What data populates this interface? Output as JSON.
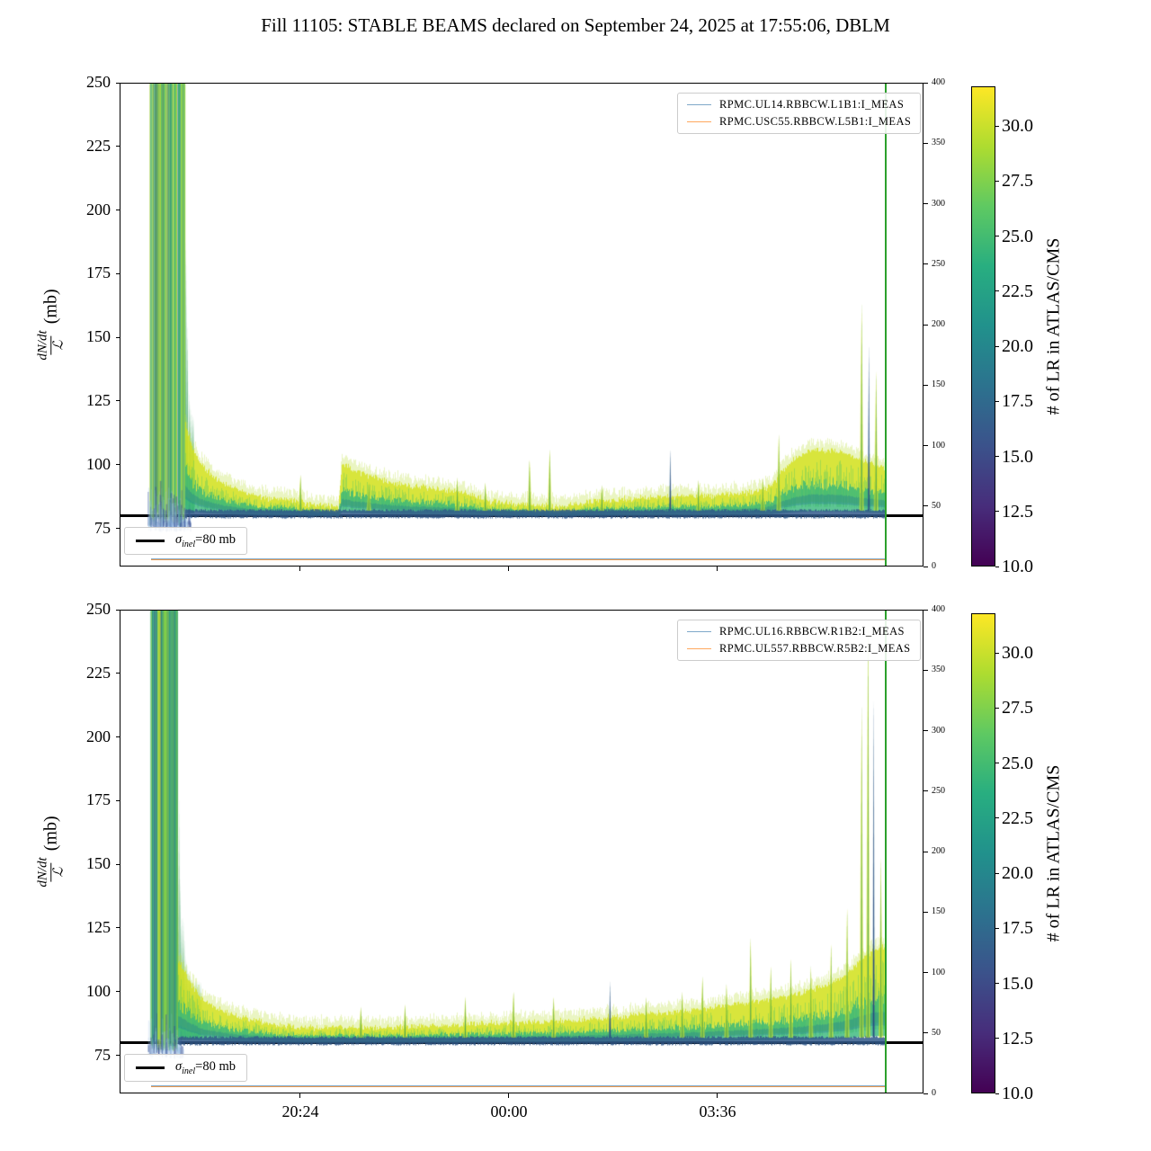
{
  "title": "Fill 11105: STABLE BEAMS declared on September 24, 2025 at 17:55:06, DBLM",
  "ylabel": {
    "numerator": "dN/dt",
    "denominator": "ℒ",
    "unit": "(mb)"
  },
  "xticks": [
    {
      "label": "20:24",
      "pos": 0.2248
    },
    {
      "label": "00:00",
      "pos": 0.4843
    },
    {
      "label": "03:36",
      "pos": 0.7438
    }
  ],
  "colormap": [
    "#440154",
    "#472d7b",
    "#3b528b",
    "#2c728e",
    "#21918c",
    "#28ae80",
    "#5ec962",
    "#addc30",
    "#fde725"
  ],
  "chart_data": [
    {
      "type": "area",
      "panel": "top",
      "series_legend": [
        "RPMC.UL14.RBBCW.L1B1:I_MEAS",
        "RPMC.USC55.RBBCW.L5B1:I_MEAS"
      ],
      "legend_colors": [
        "#7fa8c9",
        "#ffa85e"
      ],
      "ylim": [
        60,
        250
      ],
      "yticks": [
        250,
        225,
        200,
        175,
        150,
        125,
        100,
        75
      ],
      "right_ylim": [
        0,
        400
      ],
      "right_yticks": [
        0,
        50,
        100,
        150,
        200,
        250,
        300,
        350,
        400
      ],
      "hline": {
        "value": 80,
        "color": "#000000",
        "legend": {
          "sigma": "σ",
          "sub": "inel",
          "rest": "=80 mb"
        }
      },
      "end_marker": {
        "pos": 0.953,
        "color": "#2ca02c"
      },
      "bottom_traces": [
        {
          "color": "#7fa8c9",
          "right_value": 5.5
        },
        {
          "color": "#f09b4e",
          "right_value": 5.5
        }
      ],
      "colorbar": {
        "label": "# of LR in ATLAS/CMS",
        "vmin": 10,
        "vmax": 31.8,
        "ticks": [
          "10.0",
          "12.5",
          "15.0",
          "17.5",
          "20.0",
          "22.5",
          "25.0",
          "27.5",
          "30.0"
        ]
      },
      "band": {
        "style": "block",
        "x_start": 0.039,
        "burst_end": 0.081,
        "x_end": 0.953,
        "base": 79.5,
        "envelope": [
          [
            0.082,
            116
          ],
          [
            0.09,
            107
          ],
          [
            0.1,
            101
          ],
          [
            0.115,
            96
          ],
          [
            0.135,
            92
          ],
          [
            0.16,
            89
          ],
          [
            0.185,
            87
          ],
          [
            0.21,
            87
          ],
          [
            0.235,
            85
          ],
          [
            0.272,
            84
          ],
          [
            0.276,
            101
          ],
          [
            0.29,
            98
          ],
          [
            0.31,
            96
          ],
          [
            0.33,
            94
          ],
          [
            0.36,
            92
          ],
          [
            0.39,
            91
          ],
          [
            0.415,
            90
          ],
          [
            0.44,
            88
          ],
          [
            0.46,
            86
          ],
          [
            0.49,
            85
          ],
          [
            0.52,
            84.5
          ],
          [
            0.555,
            84
          ],
          [
            0.58,
            85.5
          ],
          [
            0.61,
            86.5
          ],
          [
            0.64,
            87
          ],
          [
            0.67,
            87.5
          ],
          [
            0.7,
            88
          ],
          [
            0.73,
            88
          ],
          [
            0.76,
            88.5
          ],
          [
            0.79,
            89.5
          ],
          [
            0.81,
            92
          ],
          [
            0.825,
            98
          ],
          [
            0.84,
            103
          ],
          [
            0.86,
            106
          ],
          [
            0.88,
            106
          ],
          [
            0.9,
            105
          ],
          [
            0.915,
            103
          ],
          [
            0.93,
            101
          ],
          [
            0.953,
            99
          ]
        ],
        "spikes": [
          [
            0.225,
            96
          ],
          [
            0.31,
            93
          ],
          [
            0.42,
            95
          ],
          [
            0.455,
            93
          ],
          [
            0.51,
            102
          ],
          [
            0.535,
            106
          ],
          [
            0.6,
            92
          ],
          [
            0.685,
            106,
            "dark"
          ],
          [
            0.72,
            94
          ],
          [
            0.8,
            95
          ],
          [
            0.82,
            112
          ],
          [
            0.923,
            163
          ],
          [
            0.932,
            147,
            "dark"
          ],
          [
            0.941,
            137
          ]
        ]
      }
    },
    {
      "type": "area",
      "panel": "bottom",
      "series_legend": [
        "RPMC.UL16.RBBCW.R1B2:I_MEAS",
        "RPMC.UL557.RBBCW.R5B2:I_MEAS"
      ],
      "legend_colors": [
        "#7fa8c9",
        "#ffa85e"
      ],
      "ylim": [
        60,
        250
      ],
      "yticks": [
        250,
        225,
        200,
        175,
        150,
        125,
        100,
        75
      ],
      "right_ylim": [
        0,
        400
      ],
      "right_yticks": [
        0,
        50,
        100,
        150,
        200,
        250,
        300,
        350,
        400
      ],
      "hline": {
        "value": 80,
        "color": "#000000",
        "legend": {
          "sigma": "σ",
          "sub": "inel",
          "rest": "=80 mb"
        }
      },
      "end_marker": {
        "pos": 0.953,
        "color": "#2ca02c"
      },
      "bottom_traces": [
        {
          "color": "#7fa8c9",
          "right_value": 5.5
        },
        {
          "color": "#f09b4e",
          "right_value": 5.5
        }
      ],
      "colorbar": {
        "label": "# of LR in ATLAS/CMS",
        "vmin": 10,
        "vmax": 31.8,
        "ticks": [
          "10.0",
          "12.5",
          "15.0",
          "17.5",
          "20.0",
          "22.5",
          "25.0",
          "27.5",
          "30.0"
        ]
      },
      "band": {
        "style": "spiky",
        "x_start": 0.039,
        "burst_end": 0.072,
        "x_end": 0.953,
        "base": 79.5,
        "envelope": [
          [
            0.075,
            112
          ],
          [
            0.085,
            105
          ],
          [
            0.1,
            98
          ],
          [
            0.12,
            94
          ],
          [
            0.14,
            91
          ],
          [
            0.17,
            89
          ],
          [
            0.2,
            87
          ],
          [
            0.24,
            86
          ],
          [
            0.28,
            86.5
          ],
          [
            0.32,
            86
          ],
          [
            0.36,
            86.5
          ],
          [
            0.4,
            87
          ],
          [
            0.44,
            87.5
          ],
          [
            0.48,
            88
          ],
          [
            0.52,
            88.5
          ],
          [
            0.56,
            89
          ],
          [
            0.6,
            90
          ],
          [
            0.64,
            91
          ],
          [
            0.68,
            92
          ],
          [
            0.72,
            93.5
          ],
          [
            0.76,
            95
          ],
          [
            0.8,
            97
          ],
          [
            0.84,
            99
          ],
          [
            0.87,
            102
          ],
          [
            0.9,
            106
          ],
          [
            0.92,
            112
          ],
          [
            0.935,
            116
          ],
          [
            0.953,
            118
          ]
        ],
        "spikes": [
          [
            0.3,
            94
          ],
          [
            0.355,
            95
          ],
          [
            0.43,
            98
          ],
          [
            0.49,
            100
          ],
          [
            0.54,
            98
          ],
          [
            0.61,
            104,
            "dark"
          ],
          [
            0.655,
            98
          ],
          [
            0.7,
            100
          ],
          [
            0.725,
            106
          ],
          [
            0.755,
            103
          ],
          [
            0.785,
            121
          ],
          [
            0.81,
            110
          ],
          [
            0.835,
            113
          ],
          [
            0.86,
            110
          ],
          [
            0.885,
            119
          ],
          [
            0.905,
            133
          ],
          [
            0.923,
            212
          ],
          [
            0.931,
            248
          ],
          [
            0.938,
            216,
            "dark"
          ],
          [
            0.947,
            153
          ]
        ]
      }
    }
  ]
}
